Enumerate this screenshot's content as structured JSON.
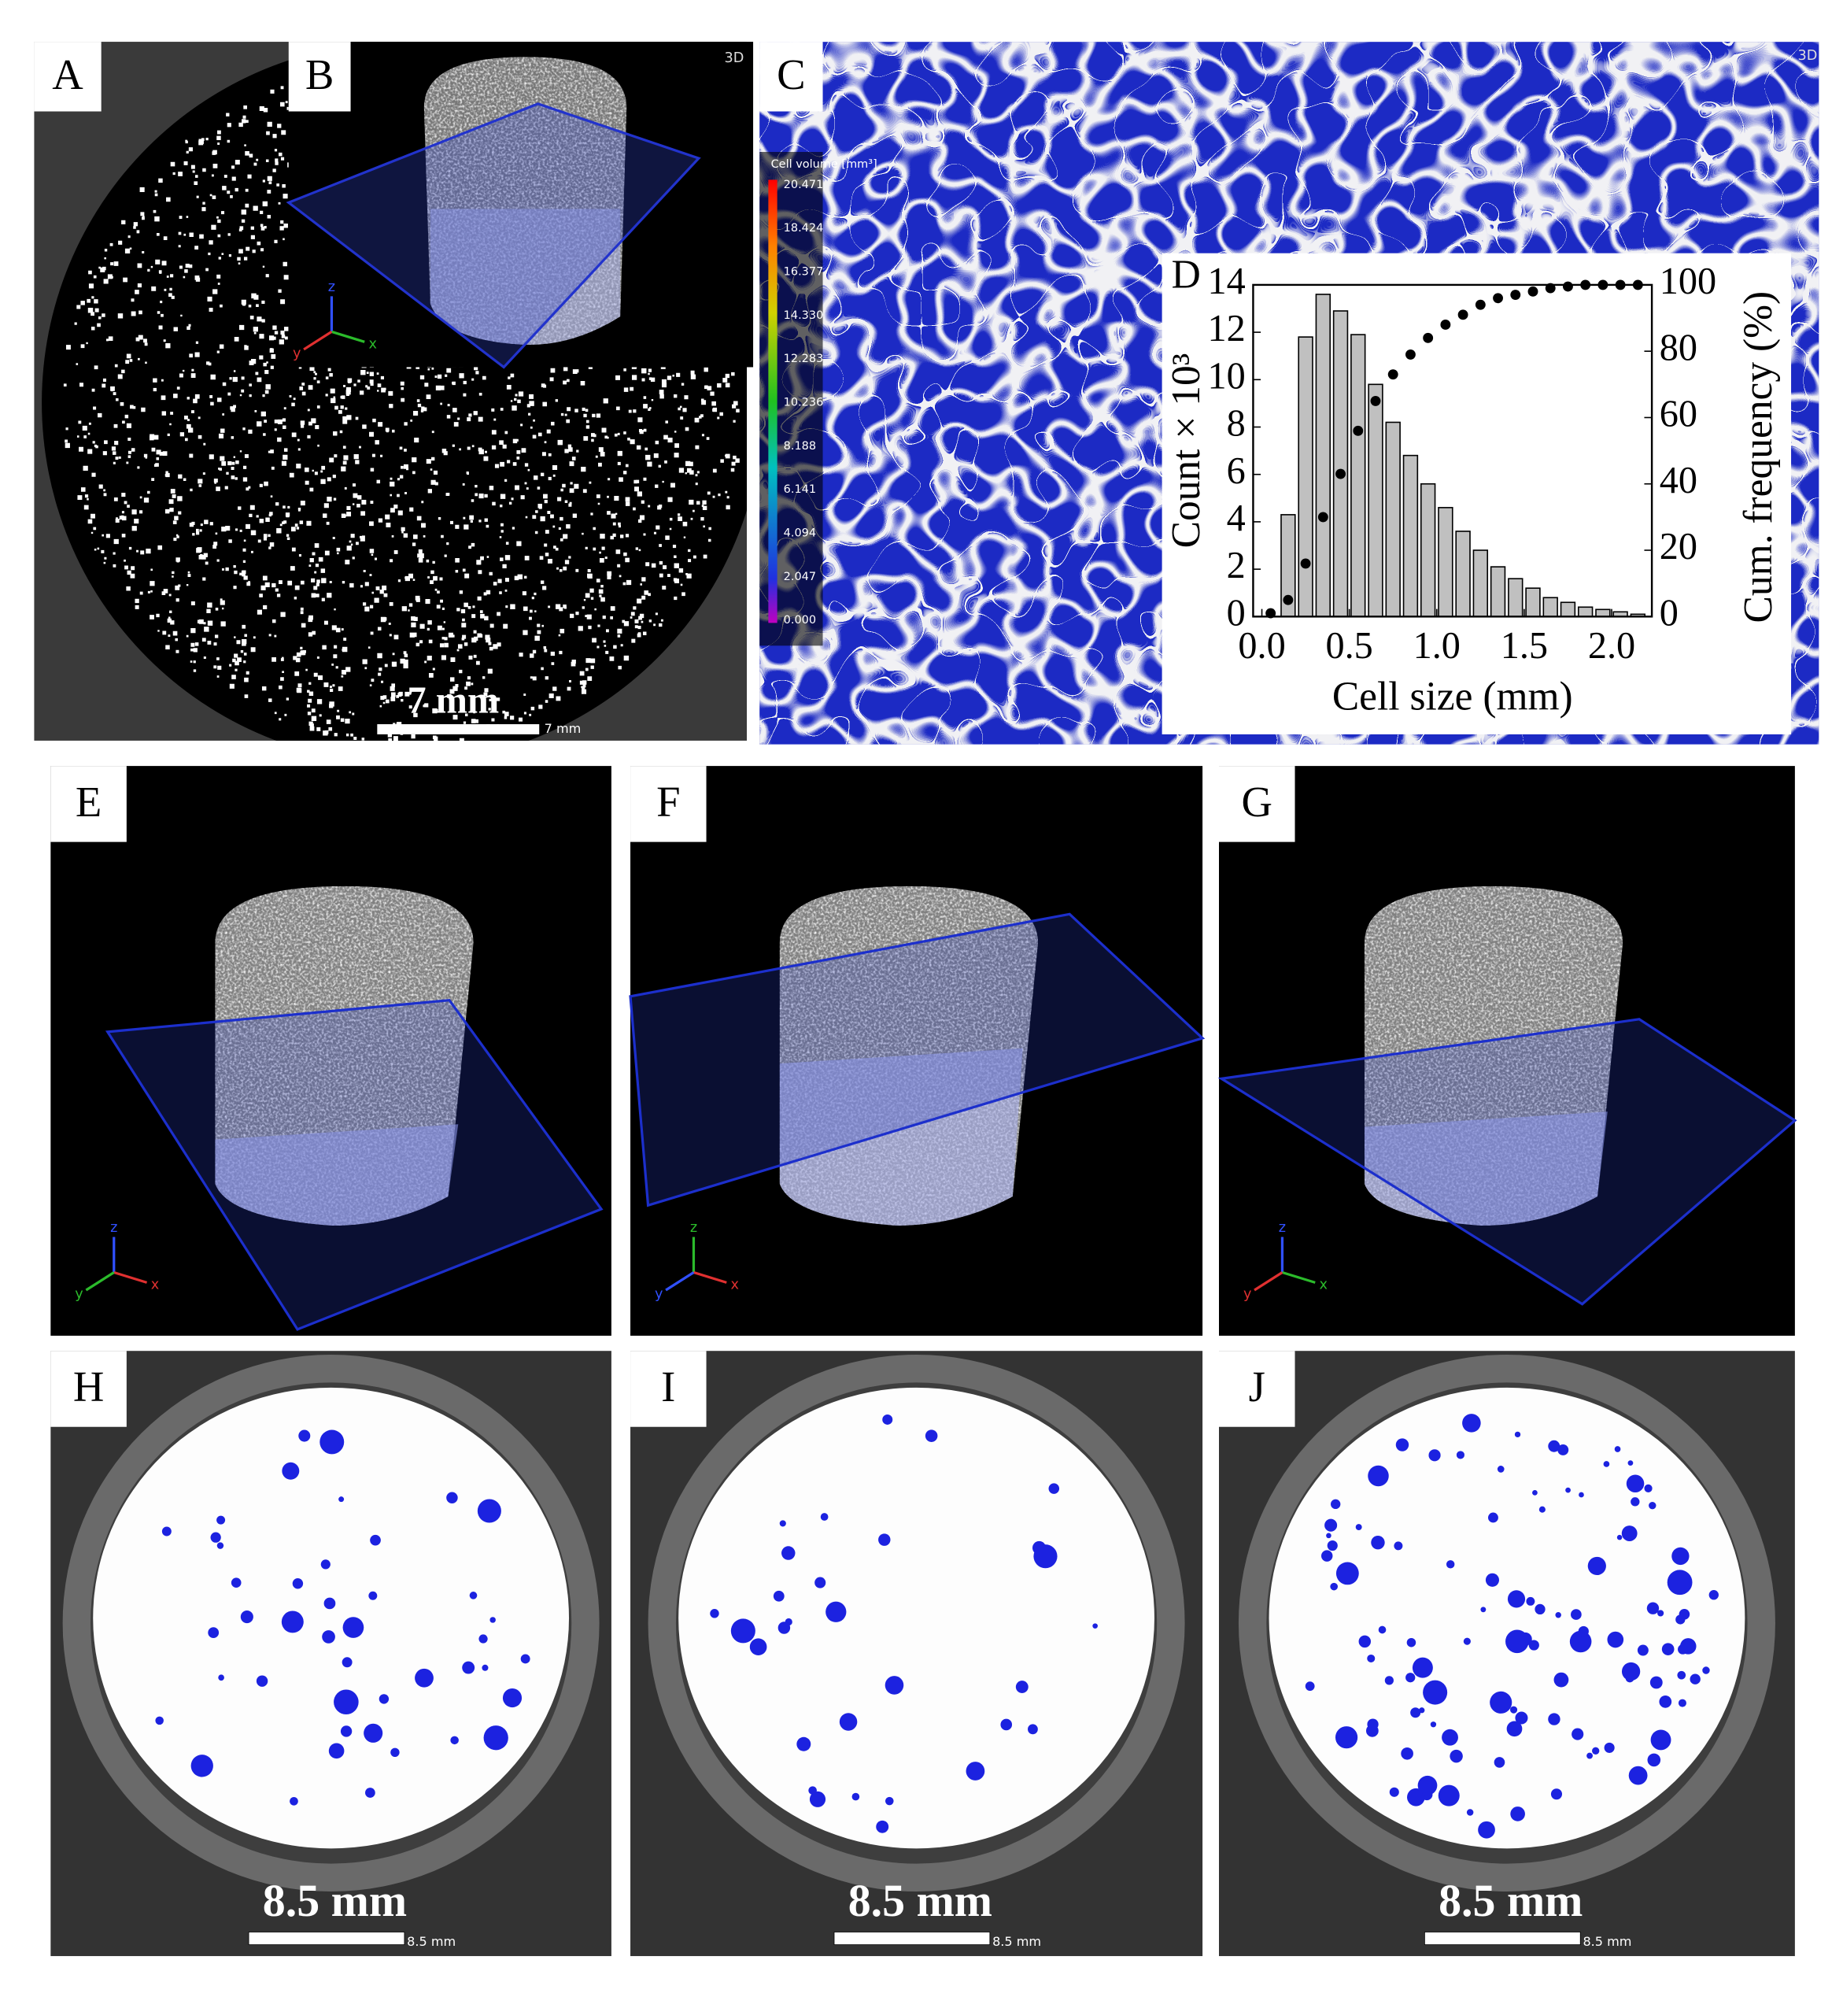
{
  "panels": {
    "A": "A",
    "B": "B",
    "C": "C",
    "D": "D",
    "E": "E",
    "F": "F",
    "G": "G",
    "H": "H",
    "I": "I",
    "J": "J"
  },
  "panel_a": {
    "scale_bar_label": "7 mm",
    "scale_bar_note": "7 mm"
  },
  "panel_b": {
    "view_label": "3D",
    "colorbar_title": "Cell volume [mm³]",
    "colorbar_labels": [
      "20.471",
      "18.424",
      "16.377",
      "14.330",
      "12.283",
      "10.236",
      "8.188",
      "6.141",
      "4.094",
      "2.047",
      "0.000"
    ]
  },
  "panel_c": {
    "view_label": "3D"
  },
  "triad_labels": {
    "x": "x",
    "y": "y",
    "z": "z"
  },
  "slices": [
    {
      "scale_bar_label": "8.5 mm",
      "scale_bar_note": "8.5 mm"
    },
    {
      "scale_bar_label": "8.5 mm",
      "scale_bar_note": "8.5 mm"
    },
    {
      "scale_bar_label": "8.5 mm",
      "scale_bar_note": "8.5 mm"
    }
  ],
  "chart_data": {
    "type": "histogram",
    "xlabel": "Cell size (mm)",
    "ylabel": "Count × 10³",
    "y2label": "Cum. frequency (%)",
    "bins": [
      0.0,
      0.1,
      0.2,
      0.3,
      0.4,
      0.5,
      0.6,
      0.7,
      0.8,
      0.9,
      1.0,
      1.1,
      1.2,
      1.3,
      1.4,
      1.5,
      1.6,
      1.7,
      1.8,
      1.9,
      2.0,
      2.1,
      2.2
    ],
    "values": [
      0,
      4.3,
      11.8,
      13.6,
      12.9,
      11.9,
      9.8,
      8.2,
      6.8,
      5.6,
      4.6,
      3.6,
      2.8,
      2.1,
      1.6,
      1.2,
      0.8,
      0.6,
      0.4,
      0.3,
      0.2,
      0.1
    ],
    "color": "#c0c0c0",
    "overlay": {
      "type": "scatter",
      "axis": "y2",
      "color": "#000000",
      "x": [
        0.05,
        0.15,
        0.25,
        0.35,
        0.45,
        0.55,
        0.65,
        0.75,
        0.85,
        0.95,
        1.05,
        1.15,
        1.25,
        1.35,
        1.45,
        1.55,
        1.65,
        1.75,
        1.85,
        1.95,
        2.05,
        2.15
      ],
      "values": [
        1,
        5,
        16,
        30,
        43,
        56,
        65,
        73,
        79,
        84,
        88,
        91,
        94,
        96,
        97,
        98,
        99,
        99.5,
        100,
        100,
        100,
        100
      ]
    },
    "xlim": [
      -0.05,
      2.23
    ],
    "xticks": [
      {
        "value": 0.0,
        "label": "0.0"
      },
      0.5,
      {
        "value": 1.0,
        "label": "1.0"
      },
      1.5,
      {
        "value": 2.0,
        "label": "2.0"
      }
    ],
    "ylim": [
      0,
      14
    ],
    "yticks": [
      0,
      2,
      4,
      6,
      8,
      10,
      12,
      14
    ],
    "y2lim": [
      0,
      100
    ],
    "y2ticks": [
      0,
      20,
      40,
      60,
      80,
      100
    ]
  }
}
